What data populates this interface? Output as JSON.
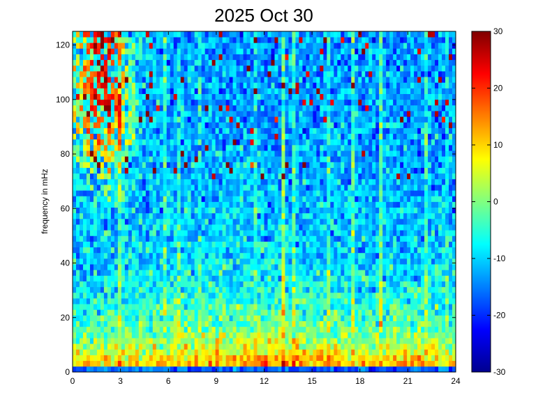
{
  "chart_data": {
    "type": "heatmap",
    "title": "2025 Oct 30",
    "xlabel": "",
    "ylabel": "frequency in mHz",
    "xlim": [
      0,
      24
    ],
    "ylim": [
      0,
      125
    ],
    "x_ticks": [
      0,
      3,
      6,
      9,
      12,
      15,
      18,
      21,
      24
    ],
    "y_ticks": [
      0,
      20,
      40,
      60,
      80,
      100,
      120
    ],
    "colorbar": {
      "colormap": "jet",
      "clim": [
        -30,
        30
      ],
      "ticks": [
        30,
        20,
        10,
        0,
        -10,
        -20,
        -30
      ]
    },
    "grid": false,
    "grid_resolution": {
      "time_bins": 110,
      "freq_bins": 60
    },
    "colors": {
      "background": "#ffffff",
      "axis": "#000000"
    }
  }
}
